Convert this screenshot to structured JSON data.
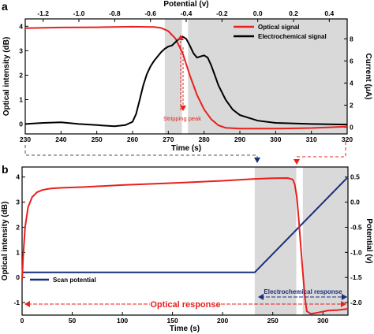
{
  "chart_data": [
    {
      "panel_label": "a",
      "type": "line",
      "xlabel": "Time (s)",
      "x_range": [
        230,
        320
      ],
      "x_ticks": [
        "230",
        "240",
        "250",
        "260",
        "270",
        "280",
        "290",
        "300",
        "310",
        "320"
      ],
      "top_xlabel": "Potential (v)",
      "top_x_range": [
        -1.3,
        0.5
      ],
      "top_x_ticks": [
        "-1.2",
        "-1.0",
        "-0.8",
        "-0.6",
        "-0.4",
        "-0.2",
        "0.0",
        "0.2",
        "0.4"
      ],
      "ylabel_left": "Optical intensity (dB)",
      "y_left_range": [
        -0.4,
        4.3
      ],
      "y_left_ticks": [
        "0",
        "1",
        "2",
        "3",
        "4"
      ],
      "ylabel_right": "Current (μA)",
      "y_right_range": [
        -0.6,
        9.8
      ],
      "y_right_ticks": [
        "0",
        "2",
        "4",
        "6",
        "8"
      ],
      "shaded_x_range": [
        269,
        320
      ],
      "highlight_x_range": [
        273.8,
        275.5
      ],
      "legend_position": "top-right",
      "legend": [
        "Optical signal",
        "Electrochemical signal"
      ],
      "annotation": "Stripping peak",
      "series": [
        {
          "name": "Optical signal",
          "axis": "left",
          "color": "#e8201e",
          "x": [
            230,
            240,
            250,
            260,
            266,
            268,
            270,
            272,
            274,
            276,
            278,
            280,
            282,
            284,
            286,
            290,
            300,
            310,
            320
          ],
          "y": [
            3.92,
            3.95,
            3.96,
            3.98,
            3.97,
            3.93,
            3.8,
            3.5,
            2.9,
            2.0,
            1.2,
            0.6,
            0.2,
            -0.05,
            -0.15,
            -0.18,
            -0.18,
            -0.16,
            -0.1
          ]
        },
        {
          "name": "Electrochemical signal",
          "axis": "right",
          "color": "#000000",
          "x": [
            230,
            235,
            240,
            245,
            250,
            255,
            258,
            260,
            261,
            262,
            263,
            264,
            265,
            266,
            267,
            268,
            269,
            270,
            271,
            272,
            273,
            274,
            275,
            276,
            277,
            278,
            279,
            280,
            281,
            282,
            283,
            284,
            286,
            288,
            290,
            295,
            300,
            310,
            320
          ],
          "y": [
            0.3,
            0.4,
            0.45,
            0.3,
            0.2,
            0.1,
            0.2,
            0.5,
            1.2,
            2.5,
            3.8,
            4.8,
            5.5,
            6.0,
            6.4,
            6.8,
            7.1,
            7.3,
            7.4,
            7.7,
            8.0,
            8.2,
            8.0,
            7.4,
            6.7,
            6.3,
            6.4,
            6.5,
            6.3,
            5.6,
            4.7,
            3.8,
            2.5,
            1.6,
            1.1,
            0.6,
            0.4,
            0.3,
            0.25
          ]
        }
      ]
    },
    {
      "panel_label": "b",
      "type": "line",
      "xlabel": "Time (s)",
      "x_range": [
        0,
        325
      ],
      "x_ticks": [
        "0",
        "50",
        "100",
        "150",
        "200",
        "250",
        "300"
      ],
      "ylabel_left": "Optical intensity (dB)",
      "y_left_range": [
        -1.5,
        4.4
      ],
      "y_left_ticks": [
        "-1",
        "0",
        "1",
        "2",
        "3",
        "4"
      ],
      "ylabel_right": "Potential (v)",
      "y_right_range": [
        -2.25,
        0.7
      ],
      "y_right_ticks": [
        "-2.0",
        "-1.5",
        "-1.0",
        "-0.5",
        "0.0",
        "0.5"
      ],
      "shaded_x_range": [
        232,
        325
      ],
      "highlight_x_range": [
        273.5,
        280
      ],
      "legend_position": "lower-left",
      "legend": [
        "Scan potential"
      ],
      "annotations": [
        "Optical response",
        "Electrochemical response"
      ],
      "series": [
        {
          "name": "Optical signal",
          "axis": "left",
          "color": "#e8201e",
          "x": [
            0,
            1,
            3,
            6,
            10,
            15,
            20,
            25,
            30,
            40,
            60,
            100,
            150,
            200,
            230,
            250,
            265,
            270,
            272,
            274,
            276,
            278,
            280,
            282,
            284,
            288,
            295,
            305,
            315,
            325
          ],
          "y": [
            -0.1,
            0.8,
            2.0,
            2.8,
            3.2,
            3.4,
            3.48,
            3.52,
            3.55,
            3.57,
            3.6,
            3.68,
            3.76,
            3.85,
            3.92,
            3.95,
            3.96,
            3.9,
            3.7,
            3.2,
            2.3,
            1.2,
            0.2,
            -0.8,
            -1.35,
            -1.45,
            -1.4,
            -1.32,
            -1.3,
            -1.25
          ]
        },
        {
          "name": "Scan potential",
          "axis": "right",
          "color": "#1a2e7a",
          "x": [
            0,
            232,
            325
          ],
          "y": [
            -1.4,
            -1.4,
            0.5
          ]
        }
      ]
    }
  ],
  "colors": {
    "optical": "#e8201e",
    "electrochemical": "#000000",
    "potential": "#1a2e7a",
    "shade": "#d9d9d9"
  }
}
